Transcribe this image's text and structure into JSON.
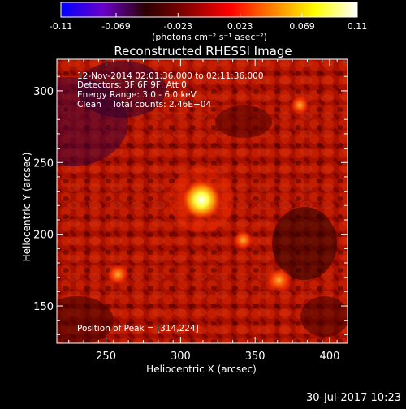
{
  "colorbar": {
    "min": -0.11,
    "max": 0.11,
    "ticks": [
      "-0.11",
      "-0.069",
      "-0.023",
      "0.023",
      "0.069",
      "0.11"
    ],
    "unit_label": "(photons cm⁻² s⁻¹ asec⁻²)",
    "colormap": [
      "#0000ff",
      "#6a00c8",
      "#2a0000",
      "#8a0000",
      "#ff0000",
      "#ff8000",
      "#ffff00",
      "#ffffff"
    ]
  },
  "chart_data": {
    "type": "heatmap",
    "title": "Reconstructed RHESSI Image",
    "xlabel": "Heliocentric X (arcsec)",
    "ylabel": "Heliocentric Y (arcsec)",
    "xlim": [
      217,
      412
    ],
    "ylim": [
      124,
      322
    ],
    "xticks": [
      250,
      300,
      350,
      400
    ],
    "yticks": [
      150,
      200,
      250,
      300
    ],
    "peak": {
      "x": 314,
      "y": 224,
      "value": 0.11
    },
    "secondary_sources": [
      {
        "x": 366,
        "y": 168,
        "value": 0.06
      },
      {
        "x": 258,
        "y": 172,
        "value": 0.04
      },
      {
        "x": 342,
        "y": 196,
        "value": 0.035
      },
      {
        "x": 380,
        "y": 290,
        "value": 0.03
      }
    ],
    "annotations": {
      "time_range": "12-Nov-2014 02:01:36.000 to 02:11:36.000",
      "detectors": "Detectors: 3F 6F 9F, Att 0",
      "energy_range": "Energy Range: 3.0 - 6.0 keV",
      "method_counts": "Clean    Total counts: 2.46E+04",
      "peak_position": "Position of Peak = [314,224]"
    }
  },
  "footer": {
    "timestamp": "30-Jul-2017 10:23"
  }
}
